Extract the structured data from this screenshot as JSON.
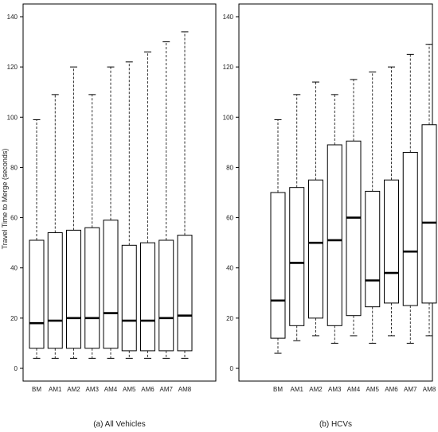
{
  "chart_data": {
    "type": "boxplot",
    "ylabel": "Travel Time to Merge (seconds)",
    "ylim": [
      0,
      140
    ],
    "yticks": [
      0,
      20,
      40,
      60,
      80,
      100,
      120,
      140
    ],
    "categories": [
      "BM",
      "AM1",
      "AM2",
      "AM3",
      "AM4",
      "AM5",
      "AM6",
      "AM7",
      "AM8"
    ],
    "panels": [
      {
        "caption": "(a) All Vehicles",
        "boxes": [
          {
            "min": 4,
            "q1": 8,
            "median": 18,
            "q3": 51,
            "max": 99
          },
          {
            "min": 4,
            "q1": 8,
            "median": 19,
            "q3": 54,
            "max": 109
          },
          {
            "min": 4,
            "q1": 8,
            "median": 20,
            "q3": 55,
            "max": 120
          },
          {
            "min": 4,
            "q1": 8,
            "median": 20,
            "q3": 56,
            "max": 109
          },
          {
            "min": 4,
            "q1": 8,
            "median": 22,
            "q3": 59,
            "max": 120
          },
          {
            "min": 4,
            "q1": 7,
            "median": 19,
            "q3": 49,
            "max": 122
          },
          {
            "min": 4,
            "q1": 7,
            "median": 19,
            "q3": 50,
            "max": 126
          },
          {
            "min": 4,
            "q1": 7,
            "median": 20,
            "q3": 51,
            "max": 130
          },
          {
            "min": 4,
            "q1": 7,
            "median": 21,
            "q3": 53,
            "max": 134
          }
        ]
      },
      {
        "caption": "(b) HCVs",
        "boxes": [
          {
            "min": 6,
            "q1": 12,
            "median": 27,
            "q3": 70,
            "max": 99
          },
          {
            "min": 11,
            "q1": 17,
            "median": 42,
            "q3": 72,
            "max": 109
          },
          {
            "min": 13,
            "q1": 20,
            "median": 50,
            "q3": 75,
            "max": 114
          },
          {
            "min": 10,
            "q1": 17,
            "median": 51,
            "q3": 89,
            "max": 109
          },
          {
            "min": 13,
            "q1": 21,
            "median": 60,
            "q3": 90.5,
            "max": 115
          },
          {
            "min": 10,
            "q1": 24.5,
            "median": 35,
            "q3": 70.5,
            "max": 118
          },
          {
            "min": 13,
            "q1": 26,
            "median": 38,
            "q3": 75,
            "max": 120
          },
          {
            "min": 10,
            "q1": 25,
            "median": 46.5,
            "q3": 86,
            "max": 125
          },
          {
            "min": 13,
            "q1": 26,
            "median": 58,
            "q3": 97,
            "max": 129
          }
        ]
      }
    ]
  }
}
